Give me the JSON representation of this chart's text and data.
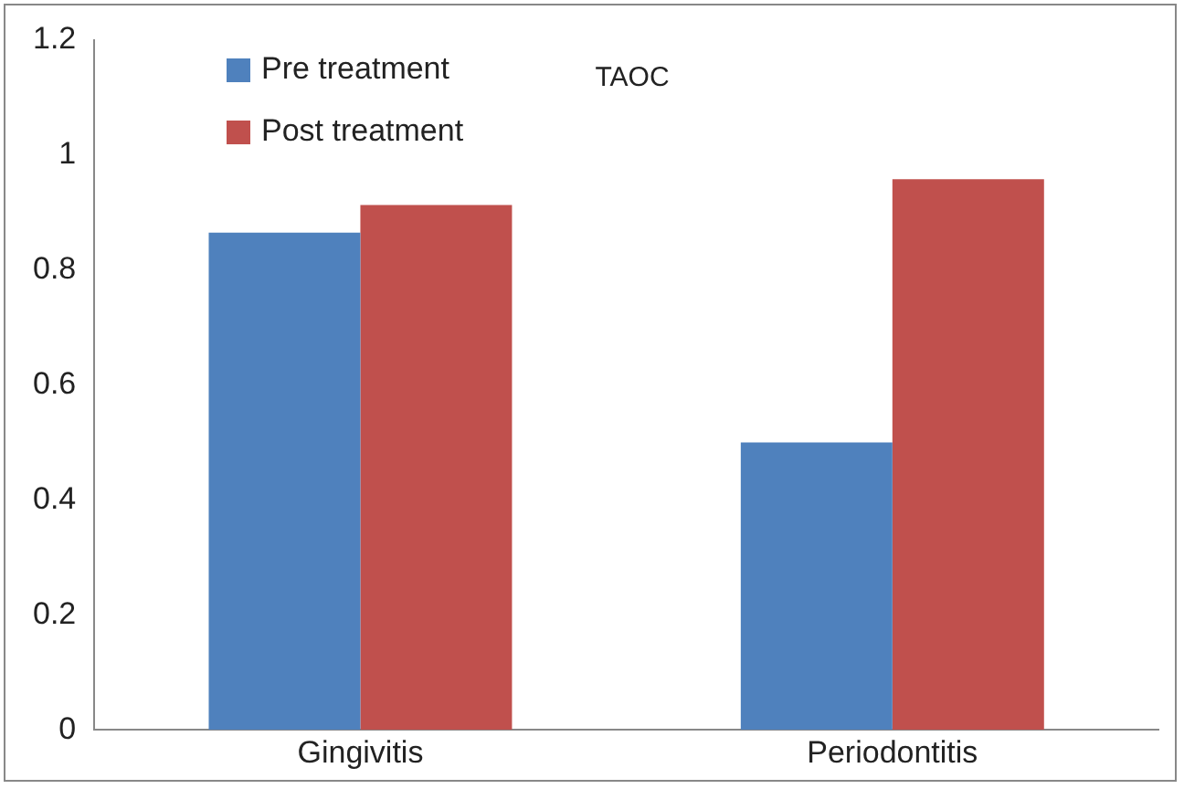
{
  "chart_data": {
    "type": "bar",
    "title": "TAOC",
    "categories": [
      "Gingivitis",
      "Periodontitis"
    ],
    "series": [
      {
        "name": "Pre treatment",
        "color": "#4f81bd",
        "values": [
          0.865,
          0.5
        ]
      },
      {
        "name": "Post treatment",
        "color": "#c0504d",
        "values": [
          0.913,
          0.958
        ]
      }
    ],
    "ylim": [
      0,
      1.2
    ],
    "yticks": [
      0,
      0.2,
      0.4,
      0.6,
      0.8,
      1,
      1.2
    ],
    "grid": false,
    "legend": "top left"
  }
}
